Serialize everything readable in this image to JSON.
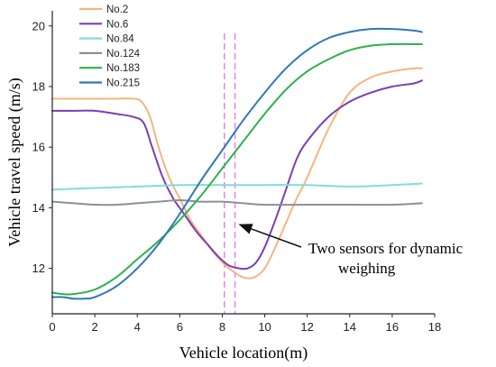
{
  "chart_data": {
    "type": "line",
    "title": "",
    "xlabel": "Vehicle location(m)",
    "ylabel": "Vehicle travel speed (m/s)",
    "xlim": [
      0,
      18
    ],
    "ylim": [
      10.5,
      20.5
    ],
    "xticks": [
      "0",
      "2",
      "4",
      "6",
      "8",
      "10",
      "12",
      "14",
      "16",
      "18"
    ],
    "yticks": [
      "12",
      "14",
      "16",
      "18",
      "20"
    ],
    "grid": false,
    "legend_position": "top-left",
    "series": [
      {
        "name": "No.2",
        "color": "#f5b57d",
        "x": [
          0,
          1,
          2,
          3,
          3.8,
          4.2,
          4.6,
          5,
          5.5,
          6,
          6.5,
          7,
          7.5,
          8,
          8.5,
          9,
          9.5,
          10,
          10.5,
          11,
          11.5,
          12,
          13,
          14,
          15,
          16,
          17,
          17.4
        ],
        "y": [
          17.6,
          17.6,
          17.6,
          17.6,
          17.6,
          17.5,
          17.0,
          16.0,
          15.0,
          14.3,
          13.6,
          13.1,
          12.6,
          12.2,
          11.9,
          11.7,
          11.7,
          12.0,
          12.7,
          13.5,
          14.3,
          15.0,
          16.6,
          17.8,
          18.3,
          18.5,
          18.6,
          18.6
        ]
      },
      {
        "name": "No.6",
        "color": "#7a3fb0",
        "x": [
          0,
          1,
          2,
          3,
          3.8,
          4.3,
          4.7,
          5.2,
          5.7,
          6.2,
          6.8,
          7.3,
          7.8,
          8.3,
          8.8,
          9.2,
          9.6,
          10,
          10.5,
          11,
          11.5,
          12,
          13,
          14,
          15,
          16,
          17,
          17.4
        ],
        "y": [
          17.2,
          17.2,
          17.2,
          17.1,
          17.0,
          16.8,
          16.0,
          15.0,
          14.3,
          13.8,
          13.2,
          12.8,
          12.4,
          12.1,
          12.0,
          12.0,
          12.2,
          12.7,
          13.6,
          14.6,
          15.6,
          16.2,
          17.0,
          17.5,
          17.8,
          18.0,
          18.1,
          18.2
        ]
      },
      {
        "name": "No.84",
        "color": "#7fded8",
        "x": [
          0,
          2,
          4,
          6,
          8,
          10,
          12,
          14,
          16,
          17.4
        ],
        "y": [
          14.6,
          14.65,
          14.7,
          14.75,
          14.75,
          14.75,
          14.75,
          14.7,
          14.75,
          14.8
        ]
      },
      {
        "name": "No.124",
        "color": "#8a9197",
        "x": [
          0,
          1,
          2,
          3,
          4,
          5,
          6,
          7,
          8,
          9,
          10,
          12,
          14,
          16,
          17.4
        ],
        "y": [
          14.2,
          14.15,
          14.1,
          14.1,
          14.15,
          14.2,
          14.25,
          14.2,
          14.2,
          14.15,
          14.1,
          14.1,
          14.1,
          14.1,
          14.15
        ]
      },
      {
        "name": "No.183",
        "color": "#2fb14d",
        "x": [
          0,
          0.5,
          1,
          2,
          3,
          4,
          5,
          6,
          7,
          8,
          9,
          10,
          11,
          12,
          13,
          14,
          15,
          16,
          17,
          17.4
        ],
        "y": [
          11.2,
          11.15,
          11.15,
          11.3,
          11.7,
          12.3,
          12.9,
          13.6,
          14.4,
          15.3,
          16.2,
          17.1,
          17.9,
          18.5,
          18.9,
          19.2,
          19.35,
          19.4,
          19.4,
          19.4
        ]
      },
      {
        "name": "No.215",
        "color": "#2f78b7",
        "x": [
          0,
          0.5,
          1,
          1.5,
          2,
          3,
          4,
          5,
          6,
          7,
          8,
          9,
          10,
          11,
          12,
          13,
          14,
          15,
          16,
          17,
          17.4
        ],
        "y": [
          11.05,
          11.05,
          11.0,
          11.0,
          11.05,
          11.4,
          12.0,
          12.8,
          13.8,
          14.9,
          15.9,
          16.9,
          17.8,
          18.6,
          19.2,
          19.6,
          19.8,
          19.9,
          19.9,
          19.85,
          19.8
        ]
      }
    ],
    "markers": [
      {
        "x": 8.1,
        "color": "#e889ec",
        "style": "dashed"
      },
      {
        "x": 8.6,
        "color": "#e889ec",
        "style": "dashed"
      }
    ],
    "annotation": {
      "line1": "Two sensors for dynamic",
      "line2": "weighing",
      "arrow_from_x": 8.7,
      "arrow_from_y": 13.5
    }
  }
}
